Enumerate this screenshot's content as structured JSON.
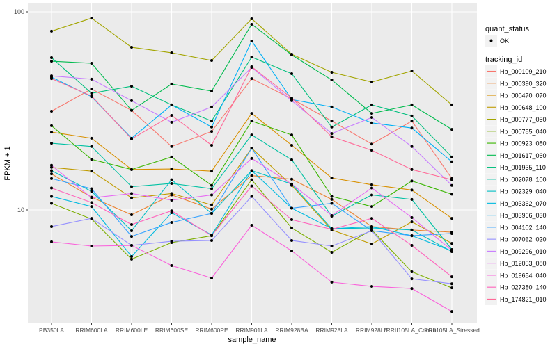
{
  "chart_data": {
    "type": "line",
    "xlabel": "sample_name",
    "ylabel": "FPKM + 1",
    "y_scale": "log10",
    "ylim": [
      2.7,
      110
    ],
    "y_ticks": [
      10,
      100
    ],
    "y_tick_labels": [
      "10",
      "100"
    ],
    "grid": true,
    "legend_position": "right",
    "categories": [
      "PB350LA",
      "RRIM600LA",
      "RRIM600LE",
      "RRIM600SE",
      "RRIM600PE",
      "RRIM901LA",
      "RRIM928BA",
      "RRIM928LA",
      "RRIM928LE",
      "RRII105LA_Control",
      "RRII105LA_Stressed"
    ],
    "shape_legend": {
      "title": "quant_status",
      "items": [
        "OK"
      ]
    },
    "color_legend_title": "tracking_id",
    "series": [
      {
        "name": "Hb_000109_210",
        "color": "#F8766D",
        "values": [
          31.5,
          40.8,
          31.8,
          20.9,
          24.9,
          46.0,
          36.4,
          28.1,
          21.5,
          28.1,
          14.4
        ]
      },
      {
        "name": "Hb_000390_320",
        "color": "#EA8331",
        "values": [
          15.2,
          11.6,
          9.45,
          11.9,
          10.1,
          14.9,
          14.3,
          11.3,
          8.24,
          7.92,
          7.72
        ]
      },
      {
        "name": "Hb_000470_070",
        "color": "#D89000",
        "values": [
          24.7,
          23.0,
          16.0,
          16.1,
          15.7,
          30.7,
          21.2,
          14.5,
          13.4,
          12.6,
          9.07
        ]
      },
      {
        "name": "Hb_000648_100",
        "color": "#C09B00",
        "values": [
          16.4,
          15.7,
          11.5,
          12.1,
          10.6,
          20.5,
          13.3,
          7.92,
          6.73,
          8.71,
          6.78
        ]
      },
      {
        "name": "Hb_000777_050",
        "color": "#A3A500",
        "values": [
          79.8,
          92.9,
          66.2,
          62.1,
          56.8,
          92.2,
          61.1,
          49.5,
          44.2,
          50.3,
          33.9
        ]
      },
      {
        "name": "Hb_000785_040",
        "color": "#7CAE00",
        "values": [
          10.8,
          9.0,
          5.64,
          6.84,
          7.41,
          14.2,
          8.11,
          6.11,
          7.92,
          4.87,
          4.04
        ]
      },
      {
        "name": "Hb_000923_080",
        "color": "#39B600",
        "values": [
          26.6,
          18.0,
          16.0,
          18.5,
          13.3,
          28.1,
          23.9,
          11.7,
          10.4,
          14.0,
          12.0
        ]
      },
      {
        "name": "Hb_001617_060",
        "color": "#00BB4E",
        "values": [
          56.3,
          55.0,
          31.8,
          43.2,
          39.8,
          86.5,
          60.6,
          45.3,
          30.7,
          33.9,
          25.5
        ]
      },
      {
        "name": "Hb_001935_110",
        "color": "#00BF7D",
        "values": [
          58.7,
          38.8,
          42.1,
          33.9,
          28.1,
          59.1,
          48.7,
          26.2,
          33.9,
          29.8,
          18.5
        ]
      },
      {
        "name": "Hb_002078_100",
        "color": "#00C1A3",
        "values": [
          21.7,
          20.9,
          13.1,
          13.6,
          12.8,
          23.9,
          17.9,
          9.3,
          11.9,
          11.3,
          6.31
        ]
      },
      {
        "name": "Hb_002329_040",
        "color": "#00BFC4",
        "values": [
          15.8,
          12.4,
          7.85,
          14.2,
          9.6,
          15.8,
          13.5,
          8.04,
          8.11,
          7.92,
          6.16
        ]
      },
      {
        "name": "Hb_003362_070",
        "color": "#00BAE0",
        "values": [
          11.7,
          10.4,
          5.82,
          9.68,
          7.47,
          15.8,
          10.2,
          8.04,
          8.24,
          7.41,
          6.21
        ]
      },
      {
        "name": "Hb_003966_030",
        "color": "#00B0F6",
        "values": [
          46.8,
          37.3,
          23.0,
          33.9,
          26.2,
          71.2,
          36.1,
          33.1,
          27.5,
          25.9,
          17.5
        ]
      },
      {
        "name": "Hb_004102_140",
        "color": "#35A2FF",
        "values": [
          14.4,
          12.8,
          7.35,
          8.65,
          9.6,
          20.5,
          10.2,
          10.8,
          7.85,
          7.41,
          7.6
        ]
      },
      {
        "name": "Hb_007062_020",
        "color": "#9590FF",
        "values": [
          8.24,
          9.07,
          6.62,
          6.95,
          7.01,
          11.7,
          7.01,
          6.57,
          7.85,
          4.49,
          4.24
        ]
      },
      {
        "name": "Hb_009296_010",
        "color": "#C77CFF",
        "values": [
          47.5,
          45.7,
          35.6,
          27.7,
          33.1,
          52.4,
          35.6,
          24.3,
          29.3,
          20.9,
          13.3
        ]
      },
      {
        "name": "Hb_012053_080",
        "color": "#E76BF3",
        "values": [
          16.8,
          11.5,
          12.1,
          11.2,
          11.9,
          18.2,
          13.5,
          9.37,
          12.9,
          9.15,
          6.26
        ]
      },
      {
        "name": "Hb_019654_040",
        "color": "#FA62DB",
        "values": [
          6.9,
          6.57,
          6.62,
          5.24,
          4.53,
          8.37,
          6.21,
          4.32,
          4.11,
          4.01,
          3.07
        ]
      },
      {
        "name": "Hb_027380_140",
        "color": "#FF62BC",
        "values": [
          12.9,
          10.9,
          8.44,
          9.9,
          7.41,
          13.2,
          8.93,
          7.98,
          9.07,
          6.62,
          4.6
        ]
      },
      {
        "name": "Hb_174821_010",
        "color": "#FF6A98",
        "values": [
          46.0,
          37.6,
          22.8,
          30.0,
          21.2,
          52.8,
          36.7,
          23.4,
          20.0,
          16.0,
          14.2
        ]
      }
    ]
  }
}
